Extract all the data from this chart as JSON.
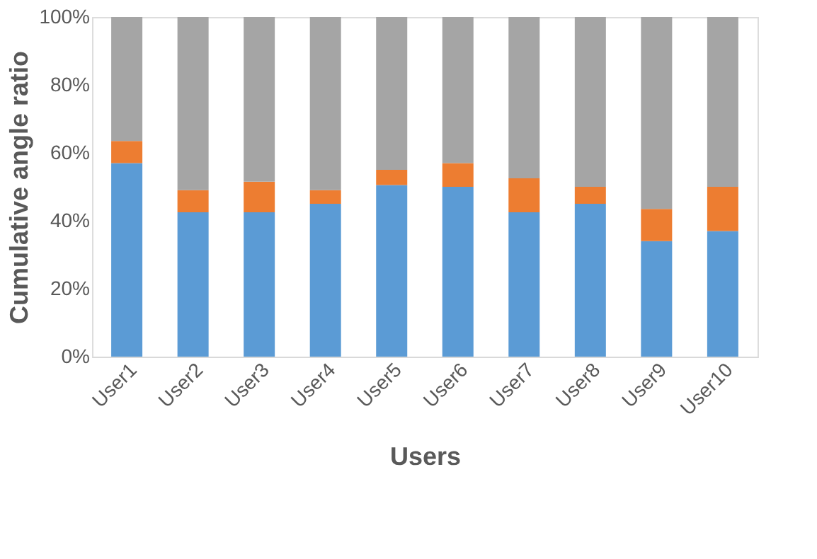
{
  "chart_data": {
    "type": "bar",
    "stacked": true,
    "xlabel": "Users",
    "ylabel": "Cumulative angle ratio",
    "categories": [
      "User1",
      "User2",
      "User3",
      "User4",
      "User5",
      "User6",
      "User7",
      "User8",
      "User9",
      "User10"
    ],
    "series": [
      {
        "color": "#5b9bd5",
        "values": [
          57,
          42.5,
          42.5,
          45,
          50.5,
          50,
          42.5,
          45,
          34,
          37
        ]
      },
      {
        "color": "#ed7d31",
        "values": [
          6.5,
          6.5,
          9,
          4,
          4.5,
          7,
          10,
          5,
          9.5,
          13
        ]
      },
      {
        "color": "#a5a5a5",
        "values": [
          36.5,
          51,
          48.5,
          51,
          45,
          43,
          47.5,
          50,
          56.5,
          50
        ]
      }
    ],
    "ylim": [
      0,
      100
    ],
    "yticks": [
      {
        "value": 0,
        "label": "0%"
      },
      {
        "value": 20,
        "label": "20%"
      },
      {
        "value": 40,
        "label": "40%"
      },
      {
        "value": 60,
        "label": "60%"
      },
      {
        "value": 80,
        "label": "80%"
      },
      {
        "value": 100,
        "label": "100%"
      }
    ],
    "grid": false,
    "legend": false
  }
}
